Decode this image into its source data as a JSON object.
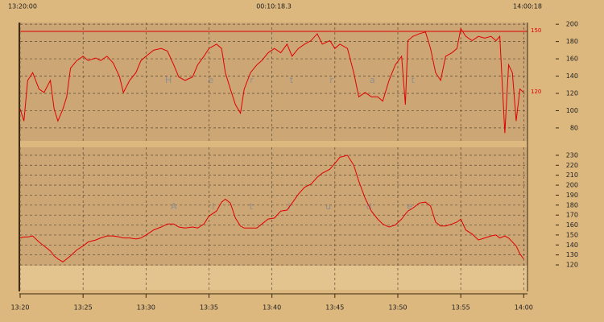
{
  "header": {
    "left": "13:20:00",
    "center": "00:10:18.3",
    "right": "14:00:18"
  },
  "x_axis": {
    "xlim": [
      0,
      40.3
    ],
    "xticks": [
      {
        "value": 0,
        "label": "13:20"
      },
      {
        "value": 5,
        "label": "13:25"
      },
      {
        "value": 10,
        "label": "13:30"
      },
      {
        "value": 15,
        "label": "13:35"
      },
      {
        "value": 20,
        "label": "13:40"
      },
      {
        "value": 25,
        "label": "13:45"
      },
      {
        "value": 30,
        "label": "13:50"
      },
      {
        "value": 35,
        "label": "13:55"
      },
      {
        "value": 40,
        "label": "14:00"
      }
    ]
  },
  "chart_data": [
    {
      "type": "line",
      "annotation": "H e r t r a t",
      "reference_labels": [
        "150",
        "120"
      ],
      "ylim": [
        65,
        202
      ],
      "yticks": [
        80,
        100,
        120,
        140,
        160,
        180,
        200
      ],
      "grid": true,
      "x": [
        0,
        0.3,
        0.6,
        1.0,
        1.5,
        1.9,
        2.4,
        2.7,
        3.0,
        3.4,
        3.7,
        4.0,
        4.5,
        5.0,
        5.4,
        6.0,
        6.4,
        6.9,
        7.4,
        7.9,
        8.2,
        8.7,
        9.2,
        9.6,
        10.0,
        10.6,
        11.2,
        11.7,
        12.2,
        12.6,
        13.1,
        13.7,
        14.1,
        14.6,
        15.0,
        15.6,
        16.0,
        16.3,
        16.7,
        17.1,
        17.5,
        17.8,
        18.3,
        18.8,
        19.2,
        19.7,
        20.2,
        20.7,
        21.2,
        21.6,
        22.1,
        22.6,
        23.1,
        23.6,
        24.0,
        24.6,
        25.0,
        25.4,
        26.0,
        26.5,
        26.9,
        27.4,
        27.9,
        28.4,
        28.8,
        29.3,
        29.8,
        30.3,
        30.6,
        30.8,
        31.2,
        31.7,
        32.2,
        32.6,
        33.0,
        33.4,
        33.8,
        34.3,
        34.7,
        35.0,
        35.4,
        35.9,
        36.4,
        36.9,
        37.4,
        37.8,
        38.1,
        38.5,
        38.8,
        39.1,
        39.4,
        39.7,
        40.0
      ],
      "series": [
        {
          "color": "#e00000",
          "values": [
            102,
            88,
            135,
            144,
            125,
            121,
            135,
            102,
            88,
            102,
            116,
            149,
            158,
            163,
            158,
            161,
            158,
            163,
            155,
            139,
            121,
            135,
            144,
            158,
            163,
            170,
            172,
            169,
            153,
            139,
            135,
            139,
            153,
            163,
            172,
            177,
            172,
            144,
            125,
            107,
            97,
            125,
            144,
            153,
            158,
            167,
            172,
            167,
            177,
            163,
            172,
            177,
            181,
            189,
            177,
            181,
            172,
            177,
            172,
            144,
            116,
            121,
            116,
            116,
            111,
            135,
            153,
            163,
            107,
            181,
            186,
            189,
            191,
            172,
            144,
            135,
            163,
            167,
            172,
            195,
            186,
            181,
            186,
            184,
            186,
            181,
            186,
            74,
            153,
            144,
            88,
            125,
            121
          ]
        }
      ]
    },
    {
      "type": "line",
      "annotation": "A l t i u d e",
      "ylim": [
        95,
        238
      ],
      "yticks": [
        120,
        130,
        140,
        150,
        160,
        170,
        180,
        190,
        200,
        210,
        220,
        230
      ],
      "grid": true,
      "x": [
        0,
        0.3,
        0.6,
        1.0,
        1.5,
        1.9,
        2.4,
        2.7,
        3.0,
        3.4,
        3.7,
        4.0,
        4.5,
        5.0,
        5.4,
        6.0,
        6.4,
        6.9,
        7.4,
        7.9,
        8.2,
        8.7,
        9.2,
        9.6,
        10.0,
        10.6,
        11.2,
        11.7,
        12.2,
        12.6,
        13.1,
        13.7,
        14.1,
        14.6,
        15.0,
        15.6,
        16.0,
        16.3,
        16.7,
        17.1,
        17.5,
        17.8,
        18.3,
        18.8,
        19.2,
        19.7,
        20.2,
        20.7,
        21.2,
        21.6,
        22.1,
        22.6,
        23.1,
        23.6,
        24.0,
        24.6,
        25.0,
        25.4,
        26.0,
        26.5,
        26.9,
        27.4,
        27.9,
        28.4,
        28.8,
        29.3,
        29.8,
        30.3,
        30.6,
        30.8,
        31.2,
        31.7,
        32.2,
        32.6,
        33.0,
        33.4,
        33.8,
        34.3,
        34.7,
        35.0,
        35.4,
        35.9,
        36.4,
        36.9,
        37.4,
        37.8,
        38.1,
        38.5,
        38.8,
        39.1,
        39.4,
        39.7,
        40.0
      ],
      "series": [
        {
          "color": "#e00000",
          "values": [
            147,
            148,
            148,
            149,
            143,
            139,
            134,
            129,
            126,
            123,
            126,
            129,
            135,
            139,
            143,
            145,
            147,
            149,
            149,
            148,
            147,
            147,
            146,
            147,
            150,
            155,
            158,
            161,
            161,
            158,
            157,
            158,
            157,
            161,
            169,
            174,
            183,
            186,
            182,
            167,
            159,
            157,
            157,
            157,
            161,
            166,
            167,
            174,
            175,
            182,
            191,
            198,
            201,
            208,
            212,
            216,
            222,
            228,
            230,
            220,
            204,
            187,
            174,
            166,
            161,
            158,
            160,
            166,
            171,
            174,
            177,
            182,
            183,
            179,
            163,
            159,
            159,
            161,
            163,
            166,
            155,
            151,
            145,
            147,
            149,
            150,
            147,
            149,
            147,
            143,
            139,
            131,
            126
          ]
        }
      ]
    }
  ]
}
